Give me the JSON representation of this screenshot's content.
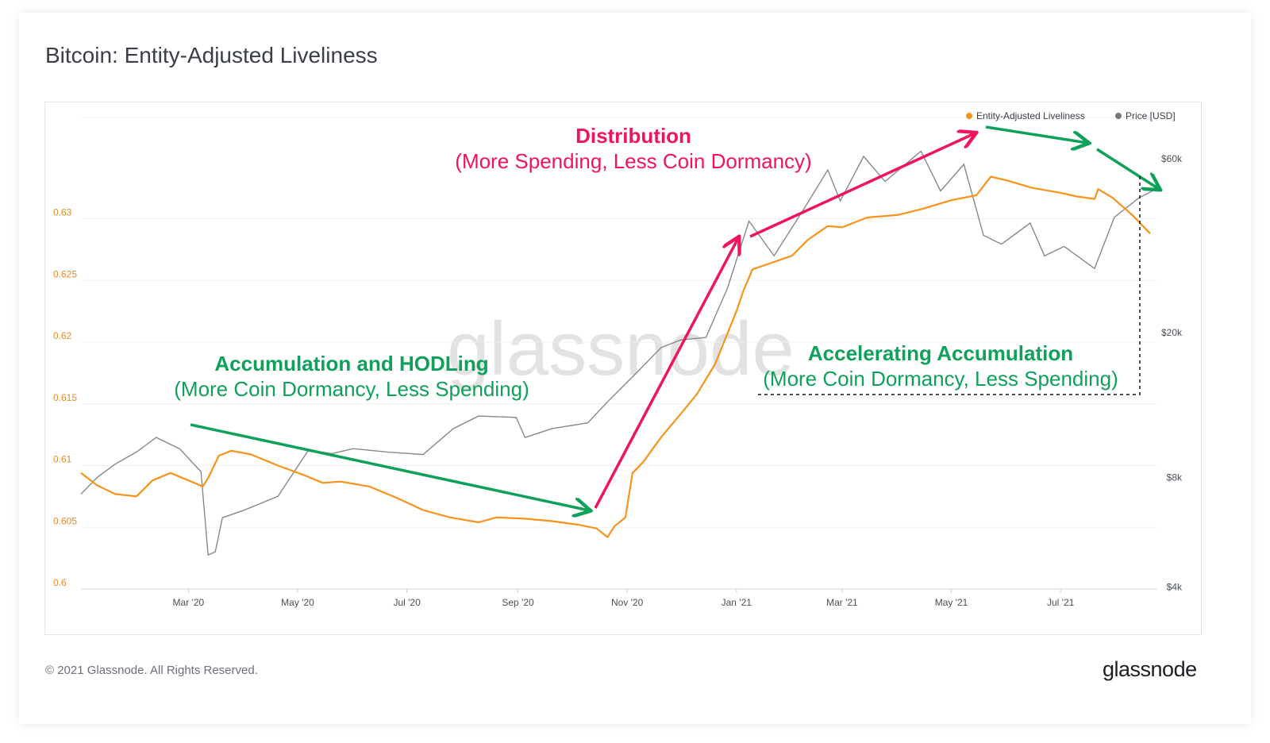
{
  "title": "Bitcoin: Entity-Adjusted Liveliness",
  "footer": {
    "copyright": "© 2021 Glassnode. All Rights Reserved.",
    "logo": "glassnode"
  },
  "watermark": "glassnode",
  "colors": {
    "liveliness": "#f7931a",
    "price": "#888888",
    "green": "#0fa15a",
    "pink": "#f0145a",
    "grid": "#eceff2"
  },
  "annotations": {
    "accumulation": {
      "head": "Accumulation and HODLing",
      "sub": "(More Coin Dormancy, Less Spending)"
    },
    "distribution": {
      "head": "Distribution",
      "sub": "(More Spending, Less Coin Dormancy)"
    },
    "accelerating": {
      "head": "Accelerating Accumulation",
      "sub": "(More Coin Dormancy, Less Spending)"
    }
  },
  "chart_data": {
    "type": "line",
    "title": "Bitcoin: Entity-Adjusted Liveliness",
    "x_ticks": [
      "Mar '20",
      "May '20",
      "Jul '20",
      "Sep '20",
      "Nov '20",
      "Jan '21",
      "Mar '21",
      "May '21",
      "Jul '21"
    ],
    "y_left": {
      "ticks": [
        "0.6",
        "0.605",
        "0.61",
        "0.615",
        "0.62",
        "0.625",
        "0.63"
      ],
      "range": [
        0.6,
        0.6382
      ]
    },
    "y_right": {
      "scale": "log",
      "ticks": [
        "$4k",
        "$8k",
        "$20k",
        "$60k"
      ],
      "range": [
        3950,
        78000
      ]
    },
    "legend_position": "top-right",
    "grid": true,
    "series": [
      {
        "name": "Entity-Adjusted Liveliness",
        "axis": "left",
        "color": "#f7931a",
        "points": [
          [
            "2020-01-01",
            0.6094
          ],
          [
            "2020-01-10",
            0.6084
          ],
          [
            "2020-01-20",
            0.6077
          ],
          [
            "2020-02-01",
            0.6075
          ],
          [
            "2020-02-10",
            0.6088
          ],
          [
            "2020-02-20",
            0.6094
          ],
          [
            "2020-03-01",
            0.6088
          ],
          [
            "2020-03-09",
            0.6083
          ],
          [
            "2020-03-12",
            0.609
          ],
          [
            "2020-03-18",
            0.6108
          ],
          [
            "2020-03-25",
            0.6112
          ],
          [
            "2020-04-05",
            0.6109
          ],
          [
            "2020-04-20",
            0.61
          ],
          [
            "2020-05-05",
            0.6092
          ],
          [
            "2020-05-15",
            0.6086
          ],
          [
            "2020-05-25",
            0.6087
          ],
          [
            "2020-06-10",
            0.6083
          ],
          [
            "2020-06-25",
            0.6074
          ],
          [
            "2020-07-10",
            0.6064
          ],
          [
            "2020-07-25",
            0.6058
          ],
          [
            "2020-08-10",
            0.6054
          ],
          [
            "2020-08-20",
            0.6058
          ],
          [
            "2020-09-05",
            0.6057
          ],
          [
            "2020-09-20",
            0.6055
          ],
          [
            "2020-10-05",
            0.6052
          ],
          [
            "2020-10-15",
            0.6049
          ],
          [
            "2020-10-21",
            0.6042
          ],
          [
            "2020-10-25",
            0.6051
          ],
          [
            "2020-10-31",
            0.6058
          ],
          [
            "2020-11-04",
            0.6094
          ],
          [
            "2020-11-10",
            0.6103
          ],
          [
            "2020-11-20",
            0.6123
          ],
          [
            "2020-12-01",
            0.6142
          ],
          [
            "2020-12-10",
            0.6158
          ],
          [
            "2020-12-20",
            0.6182
          ],
          [
            "2021-01-01",
            0.6225
          ],
          [
            "2021-01-05",
            0.6242
          ],
          [
            "2021-01-10",
            0.6259
          ],
          [
            "2021-01-20",
            0.6264
          ],
          [
            "2021-02-01",
            0.627
          ],
          [
            "2021-02-10",
            0.6283
          ],
          [
            "2021-02-21",
            0.6294
          ],
          [
            "2021-03-01",
            0.6293
          ],
          [
            "2021-03-15",
            0.6301
          ],
          [
            "2021-04-01",
            0.6303
          ],
          [
            "2021-04-15",
            0.6308
          ],
          [
            "2021-05-01",
            0.6315
          ],
          [
            "2021-05-15",
            0.6319
          ],
          [
            "2021-05-23",
            0.6334
          ],
          [
            "2021-06-01",
            0.6331
          ],
          [
            "2021-06-15",
            0.6325
          ],
          [
            "2021-07-01",
            0.6321
          ],
          [
            "2021-07-10",
            0.6318
          ],
          [
            "2021-07-20",
            0.6316
          ],
          [
            "2021-07-22",
            0.6324
          ],
          [
            "2021-07-30",
            0.6317
          ],
          [
            "2021-08-10",
            0.6303
          ],
          [
            "2021-08-20",
            0.6288
          ]
        ]
      },
      {
        "name": "Price [USD]",
        "axis": "right",
        "color": "#888888",
        "points": [
          [
            "2020-01-01",
            7200
          ],
          [
            "2020-01-10",
            8000
          ],
          [
            "2020-01-20",
            8700
          ],
          [
            "2020-02-01",
            9400
          ],
          [
            "2020-02-12",
            10300
          ],
          [
            "2020-02-25",
            9600
          ],
          [
            "2020-03-08",
            8300
          ],
          [
            "2020-03-12",
            4900
          ],
          [
            "2020-03-16",
            5000
          ],
          [
            "2020-03-20",
            6200
          ],
          [
            "2020-04-01",
            6500
          ],
          [
            "2020-04-20",
            7100
          ],
          [
            "2020-05-07",
            9500
          ],
          [
            "2020-05-20",
            9300
          ],
          [
            "2020-06-01",
            9600
          ],
          [
            "2020-06-20",
            9400
          ],
          [
            "2020-07-10",
            9250
          ],
          [
            "2020-07-27",
            10900
          ],
          [
            "2020-08-10",
            11800
          ],
          [
            "2020-08-31",
            11700
          ],
          [
            "2020-09-05",
            10300
          ],
          [
            "2020-09-20",
            10900
          ],
          [
            "2020-10-10",
            11300
          ],
          [
            "2020-10-21",
            12900
          ],
          [
            "2020-11-05",
            15300
          ],
          [
            "2020-11-20",
            18200
          ],
          [
            "2020-12-01",
            19100
          ],
          [
            "2020-12-15",
            19400
          ],
          [
            "2020-12-27",
            26500
          ],
          [
            "2021-01-08",
            40500
          ],
          [
            "2021-01-22",
            32500
          ],
          [
            "2021-02-08",
            44000
          ],
          [
            "2021-02-21",
            56000
          ],
          [
            "2021-02-28",
            46000
          ],
          [
            "2021-03-13",
            61000
          ],
          [
            "2021-03-25",
            52000
          ],
          [
            "2021-04-14",
            63000
          ],
          [
            "2021-04-25",
            49000
          ],
          [
            "2021-05-08",
            58000
          ],
          [
            "2021-05-19",
            37000
          ],
          [
            "2021-05-29",
            35000
          ],
          [
            "2021-06-14",
            40000
          ],
          [
            "2021-06-22",
            32500
          ],
          [
            "2021-07-03",
            34500
          ],
          [
            "2021-07-20",
            30000
          ],
          [
            "2021-07-31",
            41500
          ],
          [
            "2021-08-14",
            47000
          ],
          [
            "2021-08-23",
            49500
          ]
        ]
      }
    ]
  }
}
